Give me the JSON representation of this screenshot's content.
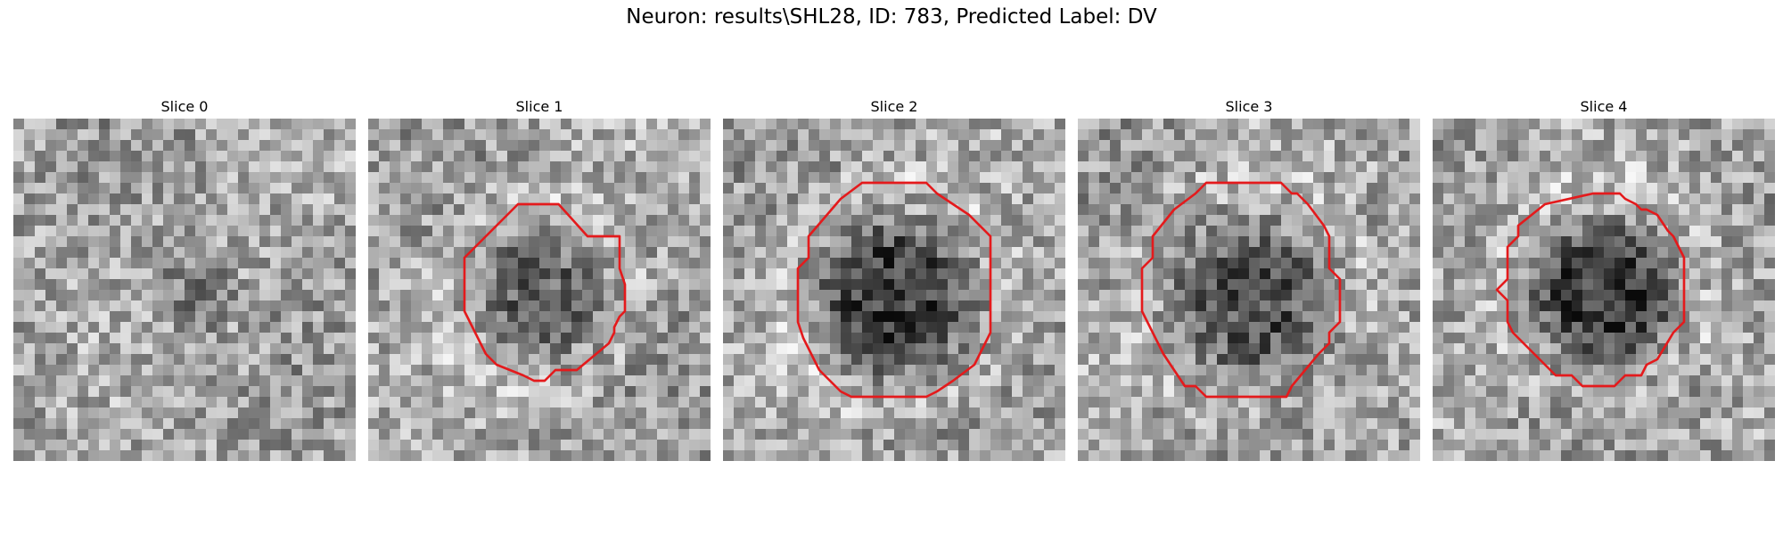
{
  "figure": {
    "title": "Neuron: results\\SHL28, ID: 783, Predicted Label: DV"
  },
  "slices": [
    {
      "title": "Slice 0",
      "contour_visible": false,
      "dark_core": "faint"
    },
    {
      "title": "Slice 1",
      "contour_visible": true,
      "dark_core": "partial"
    },
    {
      "title": "Slice 2",
      "contour_visible": true,
      "dark_core": "strong"
    },
    {
      "title": "Slice 3",
      "contour_visible": true,
      "dark_core": "medium"
    },
    {
      "title": "Slice 4",
      "contour_visible": true,
      "dark_core": "strong"
    }
  ],
  "colors": {
    "contour": "#e41a1c",
    "background": "#ffffff"
  }
}
